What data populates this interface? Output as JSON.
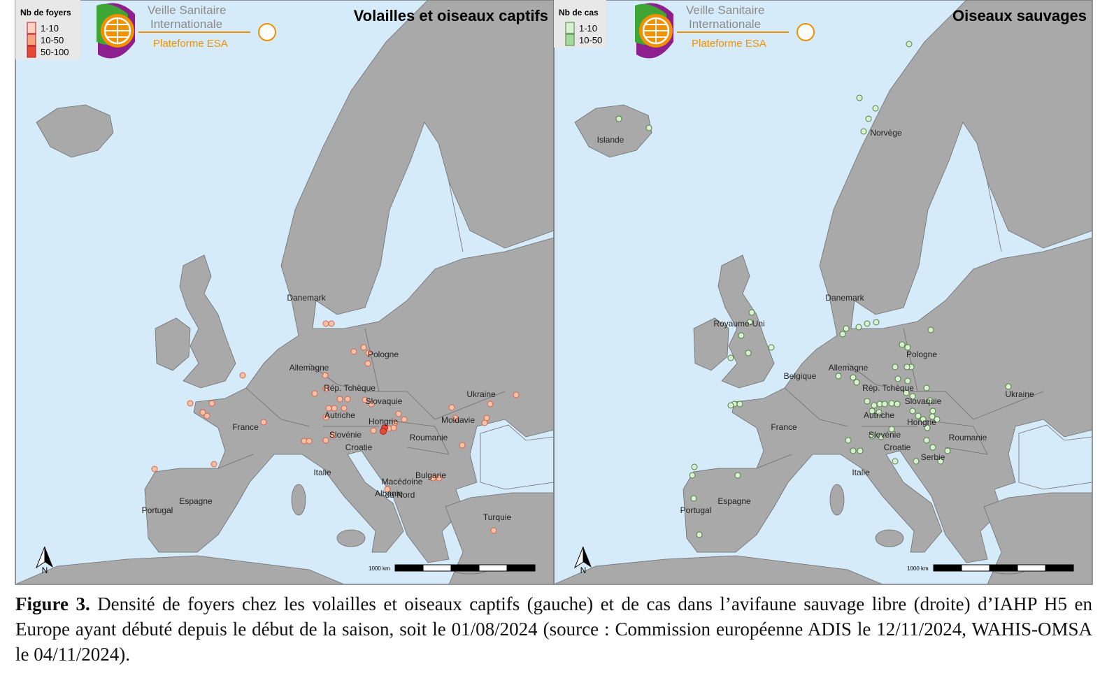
{
  "panels": [
    {
      "title": "Volailles et oiseaux captifs",
      "legend": {
        "title": "Nb de foyers",
        "items": [
          "1-10",
          "10-50",
          "50-100"
        ]
      },
      "logo": {
        "line1": "Veille Sanitaire",
        "line2": "Internationale",
        "line3": "Plateforme ESA"
      },
      "labels": [
        "Danemark",
        "Pologne",
        "Allemagne",
        "Rép. Tchèque",
        "Slovaquie",
        "Ukraine",
        "Autriche",
        "Hongrie",
        "Moldavie",
        "France",
        "Slovénie",
        "Croatie",
        "Roumanie",
        "Italie",
        "Bulgarie",
        "Macédoine",
        "du Nord",
        "Albanie",
        "Espagne",
        "Portugal",
        "Turquie"
      ],
      "scale": "1000 km",
      "north": "N"
    },
    {
      "title": "Oiseaux sauvages",
      "legend": {
        "title": "Nb de cas",
        "items": [
          "1-10",
          "10-50"
        ]
      },
      "logo": {
        "line1": "Veille Sanitaire",
        "line2": "Internationale",
        "line3": "Plateforme ESA"
      },
      "labels": [
        "Islande",
        "Norvège",
        "Danemark",
        "Royaume-Uni",
        "Pologne",
        "Allemagne",
        "Belgique",
        "Rép. Tchèque",
        "Ukraine",
        "Slovaquie",
        "Autriche",
        "Hongrie",
        "France",
        "Slovénie",
        "Roumanie",
        "Croatie",
        "Serbie",
        "Italie",
        "Espagne",
        "Portugal"
      ],
      "scale": "1000 km",
      "north": "N"
    }
  ],
  "caption": {
    "label": "Figure 3.",
    "text": "Densité de foyers chez les volailles et oiseaux captifs (gauche) et de cas dans l’avifaune sauvage libre (droite) d’IAHP H5 en Europe ayant débuté depuis le début de la saison, soit le 01/08/2024 (source : Commission européenne ADIS le 12/11/2024, WAHIS-OMSA le 04/11/2024)."
  }
}
